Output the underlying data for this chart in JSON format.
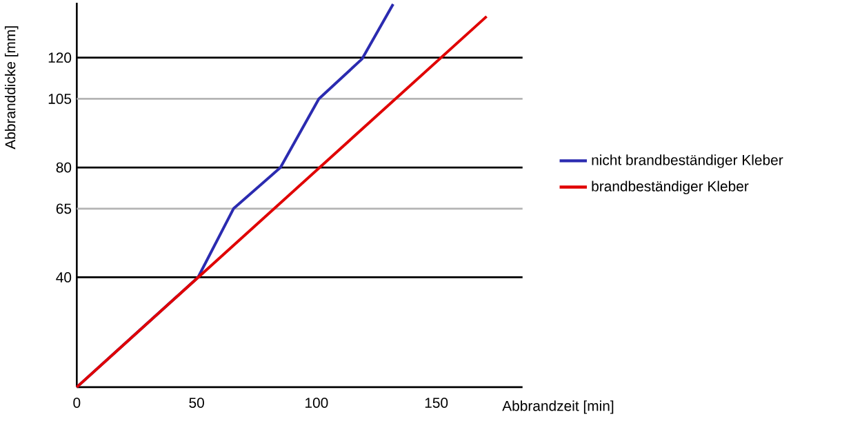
{
  "chart_data": {
    "type": "line",
    "xlabel": "Abbrandzeit [min]",
    "ylabel": "Abbranddicke [mm]",
    "xlim": [
      0,
      186
    ],
    "ylim": [
      0,
      140
    ],
    "xticks": [
      0,
      50,
      100,
      150
    ],
    "yticks": [
      40,
      65,
      80,
      105,
      120
    ],
    "legend": "right",
    "grid": false,
    "series": [
      {
        "name": "nicht brandbeständiger Kleber",
        "color": "#2b2bb0",
        "x": [
          0,
          50.6,
          65.4,
          85,
          101,
          119,
          132
        ],
        "values": [
          0,
          40,
          65,
          80,
          105,
          119.5,
          139.5
        ]
      },
      {
        "name": "brandbeständiger Kleber",
        "color": "#e00000",
        "x": [
          0,
          171
        ],
        "values": [
          0,
          135
        ]
      }
    ],
    "ref_lines": [
      {
        "axis": "y",
        "value": 40,
        "color": "#000000"
      },
      {
        "axis": "y",
        "value": 65,
        "color": "#b4b4b4"
      },
      {
        "axis": "y",
        "value": 80,
        "color": "#000000"
      },
      {
        "axis": "y",
        "value": 105,
        "color": "#b4b4b4"
      },
      {
        "axis": "y",
        "value": 120,
        "color": "#000000"
      }
    ]
  }
}
